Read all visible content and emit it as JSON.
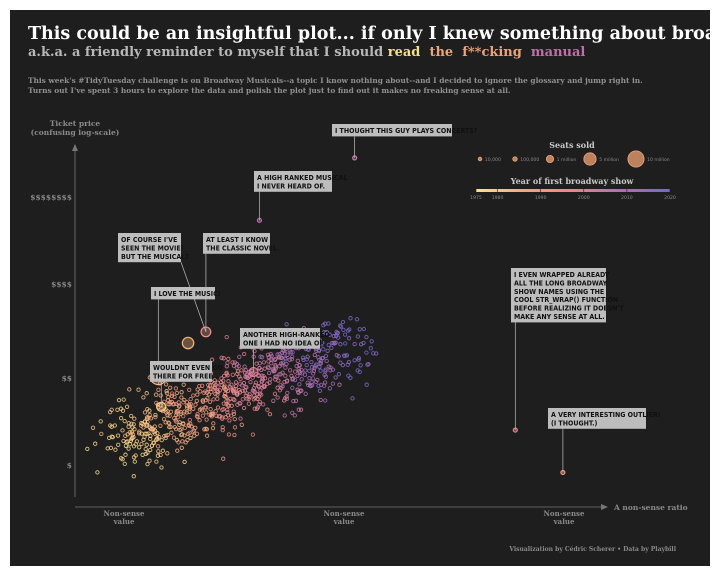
{
  "header": {
    "title": "This could be an insightful plot... if only I knew something about broadways.",
    "subtitle_lead": "a.k.a. a friendly reminder to myself that I should",
    "subtitle_word1": "read",
    "subtitle_word2": "the",
    "subtitle_word3": "f**cking",
    "subtitle_word4": "manual",
    "description_line1": "This week's #TidyTuesday challenge is on Broadway Musicals--a topic I know nothing about--and I decided to ignore the glossary and jump right in.",
    "description_line2": "Turns out I've spent 3 hours to explore the data and polish the plot just to find out it makes no freaking sense at all."
  },
  "footer": {
    "caption": "Visualization by Cédric Scherer  •  Data by Playbill"
  },
  "chart_data": {
    "type": "scatter",
    "y_scale": "log",
    "ylabel_line1": "Ticket price",
    "ylabel_line2": "(confusing log-scale)",
    "xlabel": "A non-sense ratio",
    "y_ticks": [
      "$$$$$$$$",
      "$$$$",
      "$$",
      "$"
    ],
    "x_ticks": [
      {
        "line1": "Non-sense",
        "line2": "value"
      },
      {
        "line1": "Non-sense",
        "line2": "value"
      },
      {
        "line1": "Non-sense",
        "line2": "value"
      }
    ],
    "size_legend": {
      "title": "Seats sold",
      "entries": [
        "10,000",
        "100,000",
        "1 million",
        "5 million",
        "10 million"
      ]
    },
    "color_legend": {
      "title": "Year of first broadway show",
      "ticks": [
        "1975",
        "1980",
        "1990",
        "2000",
        "2010",
        "2020"
      ],
      "range": [
        1975,
        2020
      ],
      "colors": [
        "#fbe38e",
        "#f7a57b",
        "#e9858e",
        "#b46db0",
        "#6e6ad0"
      ]
    },
    "highlights": [
      {
        "x": 0.47,
        "y": 8.6,
        "year": 2005,
        "seats": 40000
      },
      {
        "x": 0.31,
        "y": 7.2,
        "year": 2008,
        "seats": 40000
      },
      {
        "x": 0.22,
        "y": 4.7,
        "year": 1993,
        "seats": 2500000
      },
      {
        "x": 0.19,
        "y": 4.45,
        "year": 1983,
        "seats": 4000000
      },
      {
        "x": 0.14,
        "y": 3.7,
        "year": 1982,
        "seats": 10000000
      },
      {
        "x": 0.3,
        "y": 3.8,
        "year": 1999,
        "seats": 2000000
      },
      {
        "x": 0.145,
        "y": 3.02,
        "year": 1978,
        "seats": 2000000
      },
      {
        "x": 0.74,
        "y": 2.5,
        "year": 1996,
        "seats": 40000
      },
      {
        "x": 0.82,
        "y": 1.55,
        "year": 1990,
        "seats": 40000
      }
    ],
    "annotations": [
      {
        "lines": [
          "I THOUGHT THIS GUY PLAYS CONCERTS?"
        ],
        "target": 0
      },
      {
        "lines": [
          "A HIGH RANKED MUSICAL",
          "I NEVER HEARD OF."
        ],
        "target": 1
      },
      {
        "lines": [
          "OF COURSE I'VE",
          "SEEN THE MOVIE!",
          "BUT THE MUSICAL?"
        ],
        "target": 2
      },
      {
        "lines": [
          "AT LEAST I KNOW",
          "THE CLASSIC NOVEL."
        ],
        "target": 2
      },
      {
        "lines": [
          "I LOVE THE MUSIC!"
        ],
        "target": 4
      },
      {
        "lines": [
          "ANOTHER HIGH-RANKED",
          "ONE I HAD NO IDEA OF."
        ],
        "target": 5
      },
      {
        "lines": [
          "WOULDNT EVEN GO",
          "THERE FOR FREE..."
        ],
        "target": 6
      },
      {
        "lines": [
          "I EVEN WRAPPED ALREADY",
          "ALL THE LONG BROADWAY",
          "SHOW NAMES USING THE",
          "COOL STR_WRAP() FUNCTION",
          "BEFORE REALIZING IT DOESN'T",
          "MAKE ANY SENSE AT ALL."
        ],
        "target": 7
      },
      {
        "lines": [
          "A VERY INTERESTING OUTLIER!",
          "(I THOUGHT.)"
        ],
        "target": 8
      }
    ]
  }
}
